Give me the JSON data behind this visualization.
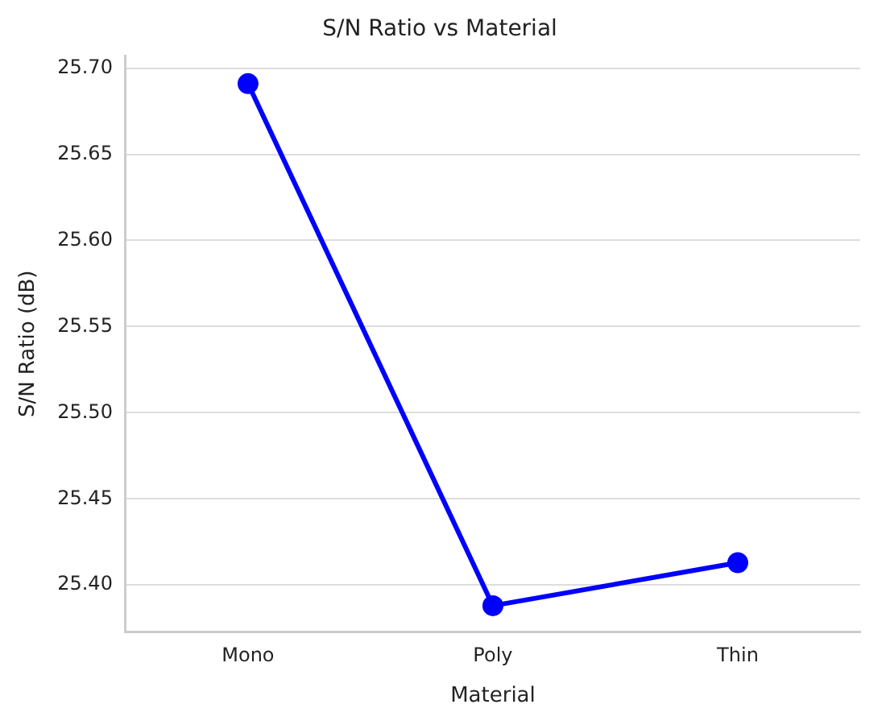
{
  "chart_data": {
    "type": "line",
    "title": "S/N Ratio vs Material",
    "xlabel": "Material",
    "ylabel": "S/N Ratio (dB)",
    "categories": [
      "Mono",
      "Poly",
      "Thin"
    ],
    "series": [
      {
        "color": "#0000ff",
        "values": [
          25.691,
          25.388,
          25.413
        ]
      }
    ],
    "ylim": [
      25.373,
      25.707
    ],
    "yticks": [
      {
        "value": 25.4,
        "label": "25.40"
      },
      {
        "value": 25.45,
        "label": "25.45"
      },
      {
        "value": 25.5,
        "label": "25.50"
      },
      {
        "value": 25.55,
        "label": "25.55"
      },
      {
        "value": 25.6,
        "label": "25.60"
      },
      {
        "value": 25.65,
        "label": "25.65"
      },
      {
        "value": 25.7,
        "label": "25.70"
      }
    ],
    "grid": "y",
    "marker": "circle",
    "line_style": "solid",
    "legend": false
  }
}
